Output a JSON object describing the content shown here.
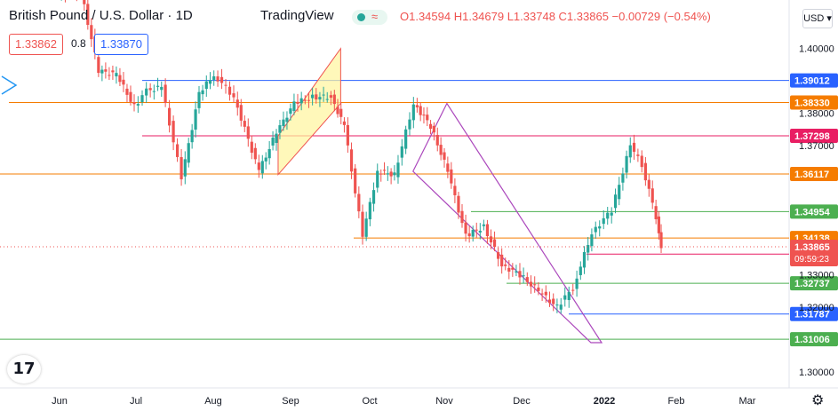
{
  "header": {
    "symbol": "British Pound / U.S. Dollar · 1D",
    "source": "TradingView",
    "market_status_icon": "wave-icon",
    "ohlc": "O1.34594 H1.34679 L1.33748 C1.33865 −0.00729 (−0.54%)"
  },
  "quote": {
    "bid": "1.33862",
    "spread": "0.8",
    "ask": "1.33870"
  },
  "currency": "USD",
  "chart_data": {
    "type": "line",
    "title": "British Pound / U.S. Dollar · 1D",
    "price_axis": {
      "ticks": [
        1.4,
        1.38,
        1.37,
        1.33,
        1.32,
        1.3
      ],
      "range": [
        1.295,
        1.415
      ]
    },
    "time_axis": [
      "Jun",
      "Jul",
      "Aug",
      "Sep",
      "Oct",
      "Nov",
      "Dec",
      "2022",
      "Feb",
      "Mar"
    ],
    "current_price": 1.33865,
    "countdown": "09:59:23",
    "close_series": [
      {
        "t": "Jun 01",
        "c": 1.417
      },
      {
        "t": "Jun 10",
        "c": 1.418
      },
      {
        "t": "Jun 17",
        "c": 1.393
      },
      {
        "t": "Jun 24",
        "c": 1.392
      },
      {
        "t": "Jul 01",
        "c": 1.382
      },
      {
        "t": "Jul 06",
        "c": 1.387
      },
      {
        "t": "Jul 12",
        "c": 1.388
      },
      {
        "t": "Jul 20",
        "c": 1.36
      },
      {
        "t": "Jul 27",
        "c": 1.386
      },
      {
        "t": "Aug 02",
        "c": 1.392
      },
      {
        "t": "Aug 10",
        "c": 1.385
      },
      {
        "t": "Aug 20",
        "c": 1.362
      },
      {
        "t": "Aug 27",
        "c": 1.374
      },
      {
        "t": "Sep 03",
        "c": 1.383
      },
      {
        "t": "Sep 10",
        "c": 1.385
      },
      {
        "t": "Sep 17",
        "c": 1.385
      },
      {
        "t": "Sep 22",
        "c": 1.376
      },
      {
        "t": "Sep 29",
        "c": 1.342
      },
      {
        "t": "Oct 05",
        "c": 1.362
      },
      {
        "t": "Oct 12",
        "c": 1.361
      },
      {
        "t": "Oct 20",
        "c": 1.383
      },
      {
        "t": "Oct 27",
        "c": 1.376
      },
      {
        "t": "Nov 03",
        "c": 1.362
      },
      {
        "t": "Nov 10",
        "c": 1.342
      },
      {
        "t": "Nov 17",
        "c": 1.345
      },
      {
        "t": "Nov 24",
        "c": 1.333
      },
      {
        "t": "Dec 01",
        "c": 1.33
      },
      {
        "t": "Dec 08",
        "c": 1.325
      },
      {
        "t": "Dec 15",
        "c": 1.32
      },
      {
        "t": "Dec 21",
        "c": 1.326
      },
      {
        "t": "Dec 28",
        "c": 1.343
      },
      {
        "t": "Jan 05",
        "c": 1.35
      },
      {
        "t": "Jan 13",
        "c": 1.37
      },
      {
        "t": "Jan 18",
        "c": 1.364
      },
      {
        "t": "Jan 24",
        "c": 1.348
      },
      {
        "t": "Jan 26",
        "c": 1.33865
      }
    ],
    "levels": [
      {
        "price": 1.39012,
        "label": "1.39012",
        "color": "#2962ff"
      },
      {
        "price": 1.3833,
        "label": "1.38330",
        "color": "#f57c00"
      },
      {
        "price": 1.37298,
        "label": "1.37298",
        "color": "#e91e63"
      },
      {
        "price": 1.36117,
        "label": "1.36117",
        "color": "#f57c00"
      },
      {
        "price": 1.34954,
        "label": "1.34954",
        "color": "#4caf50"
      },
      {
        "price": 1.34138,
        "label": "1.34138",
        "color": "#f57c00"
      },
      {
        "price": 1.33638,
        "label": "1.33638",
        "color": "#e91e63"
      },
      {
        "price": 1.32737,
        "label": "1.32737",
        "color": "#4caf50"
      },
      {
        "price": 1.31787,
        "label": "1.31787",
        "color": "#2962ff"
      },
      {
        "price": 1.31006,
        "label": "1.31006",
        "color": "#4caf50"
      }
    ],
    "colors": {
      "up": "#26a69a",
      "down": "#ef5350",
      "last": "#ef5350",
      "channel": "#ab47bc",
      "flag_fill": "#fff59d"
    }
  }
}
